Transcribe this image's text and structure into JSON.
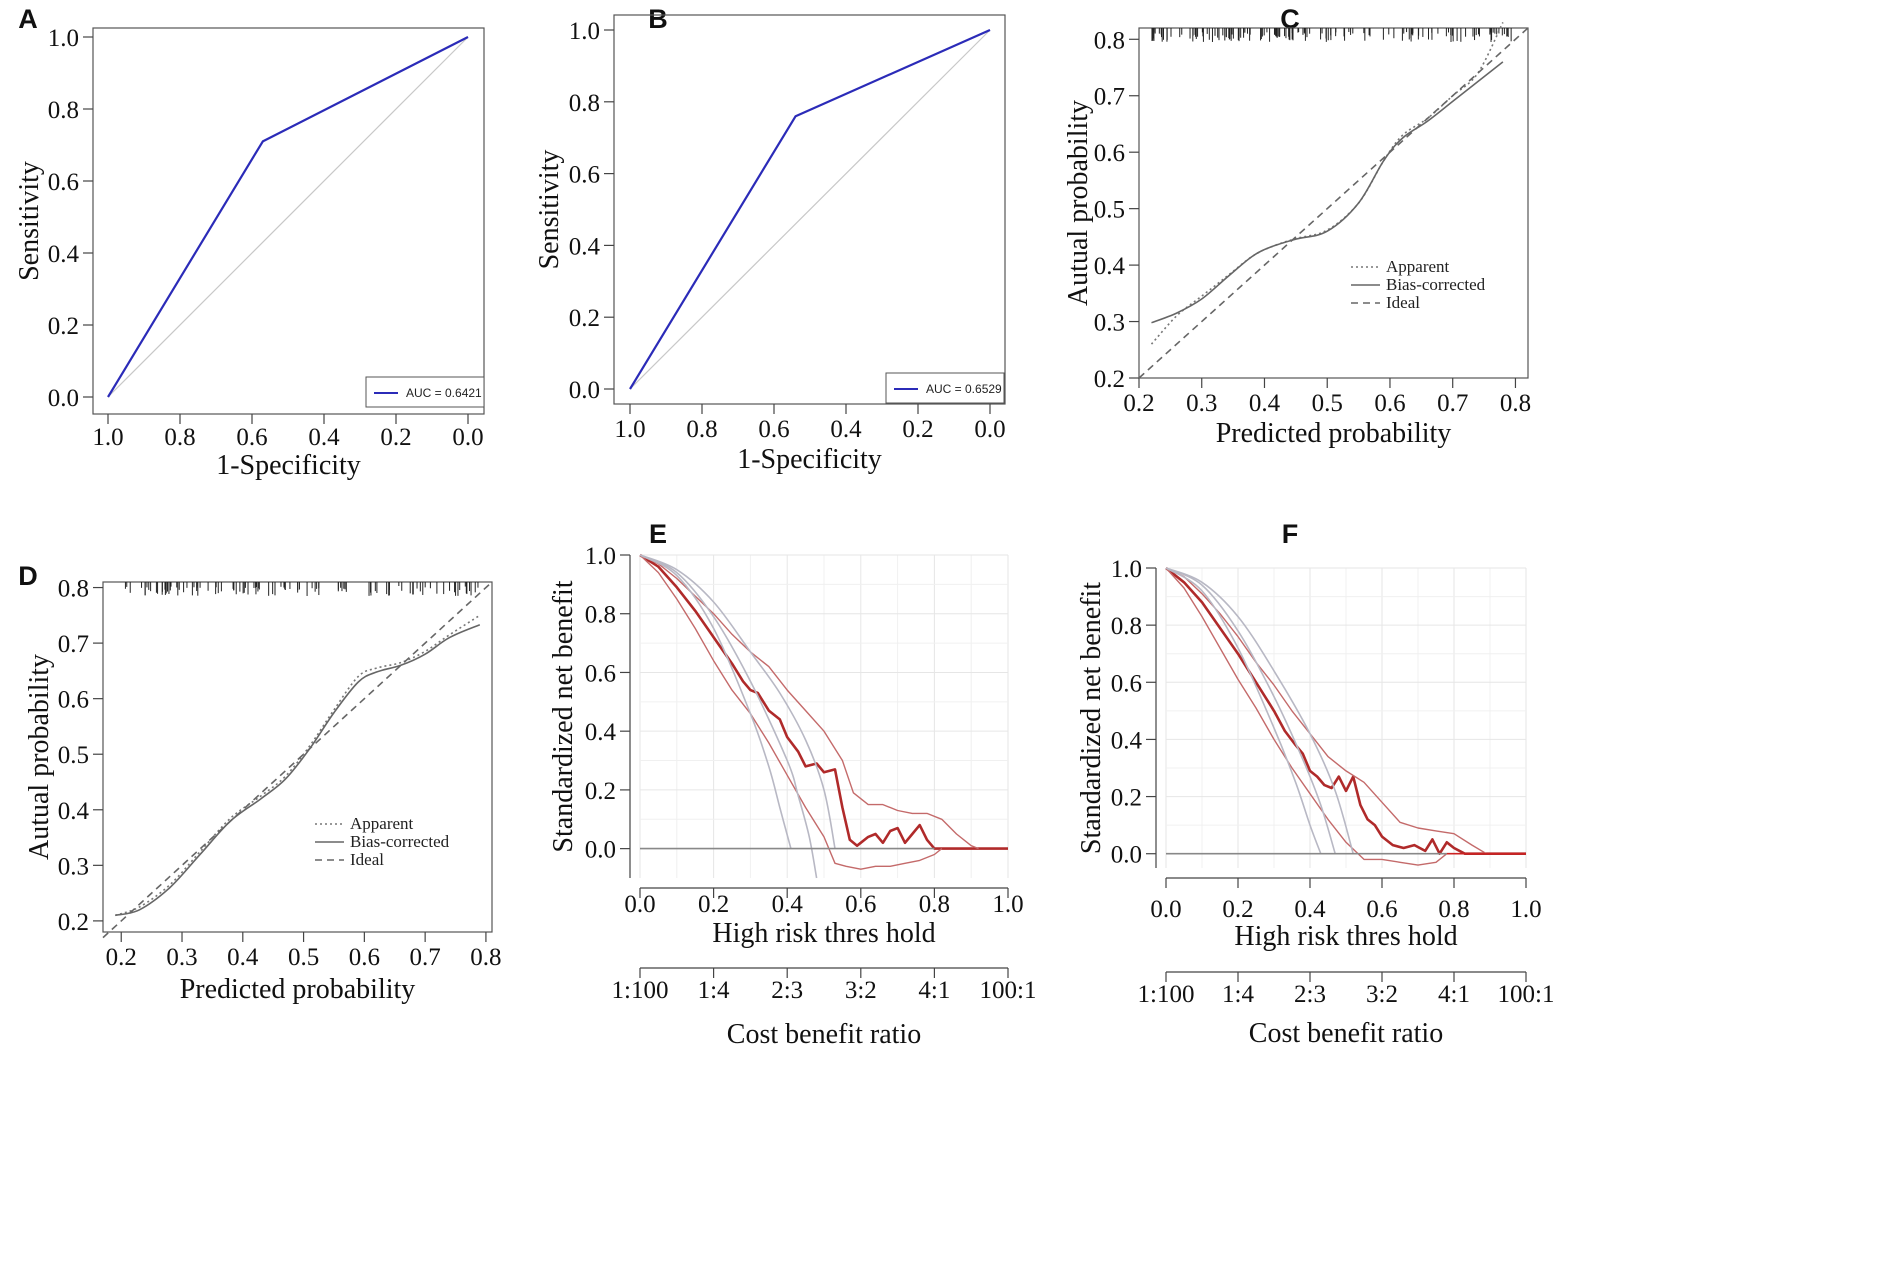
{
  "chart_data": [
    {
      "panel": "A",
      "type": "line",
      "xlabel": "1-Specificity",
      "ylabel": "Sensitivity",
      "xlim": [
        1.0,
        0.0
      ],
      "ylim": [
        0.0,
        1.0
      ],
      "xticks": [
        "1.0",
        "0.8",
        "0.6",
        "0.4",
        "0.2",
        "0.0"
      ],
      "yticks": [
        "0.0",
        "0.2",
        "0.4",
        "0.6",
        "0.8",
        "1.0"
      ],
      "series": [
        {
          "name": "AUC = 0.6421",
          "color": "#2b2bb8",
          "x": [
            1.0,
            0.57,
            0.0
          ],
          "y": [
            0.0,
            0.71,
            1.0
          ]
        }
      ],
      "reference_diagonal": true,
      "legend_position": "bottom-right"
    },
    {
      "panel": "B",
      "type": "line",
      "xlabel": "1-Specificity",
      "ylabel": "Sensitivity",
      "xlim": [
        1.0,
        0.0
      ],
      "ylim": [
        0.0,
        1.0
      ],
      "xticks": [
        "1.0",
        "0.8",
        "0.6",
        "0.4",
        "0.2",
        "0.0"
      ],
      "yticks": [
        "0.0",
        "0.2",
        "0.4",
        "0.6",
        "0.8",
        "1.0"
      ],
      "series": [
        {
          "name": "AUC = 0.6529",
          "color": "#2b2bb8",
          "x": [
            1.0,
            0.54,
            0.0
          ],
          "y": [
            0.0,
            0.76,
            1.0
          ]
        }
      ],
      "reference_diagonal": true,
      "legend_position": "bottom-right"
    },
    {
      "panel": "C",
      "type": "line",
      "xlabel": "Predicted probability",
      "ylabel": "Autual probability",
      "xlim": [
        0.2,
        0.82
      ],
      "ylim": [
        0.2,
        0.82
      ],
      "xticks": [
        "0.2",
        "0.3",
        "0.4",
        "0.5",
        "0.6",
        "0.7",
        "0.8"
      ],
      "yticks": [
        "0.2",
        "0.3",
        "0.4",
        "0.5",
        "0.6",
        "0.7",
        "0.8"
      ],
      "series": [
        {
          "name": "Apparent",
          "dash": "dotted",
          "color": "#777777",
          "x": [
            0.22,
            0.26,
            0.3,
            0.34,
            0.38,
            0.41,
            0.45,
            0.5,
            0.55,
            0.59,
            0.62,
            0.66,
            0.7,
            0.74,
            0.78
          ],
          "y": [
            0.26,
            0.31,
            0.345,
            0.38,
            0.415,
            0.432,
            0.447,
            0.462,
            0.51,
            0.585,
            0.63,
            0.66,
            0.7,
            0.74,
            0.83
          ]
        },
        {
          "name": "Bias-corrected",
          "dash": "solid",
          "color": "#666666",
          "x": [
            0.22,
            0.26,
            0.3,
            0.34,
            0.38,
            0.41,
            0.45,
            0.5,
            0.55,
            0.59,
            0.62,
            0.66,
            0.7,
            0.74,
            0.78
          ],
          "y": [
            0.298,
            0.315,
            0.34,
            0.378,
            0.415,
            0.432,
            0.446,
            0.46,
            0.51,
            0.585,
            0.625,
            0.655,
            0.69,
            0.725,
            0.76
          ]
        },
        {
          "name": "Ideal",
          "dash": "dashed",
          "color": "#666666",
          "x": [
            0.2,
            0.82
          ],
          "y": [
            0.2,
            0.82
          ]
        }
      ],
      "rug": "top",
      "legend_position": "center-right"
    },
    {
      "panel": "D",
      "type": "line",
      "xlabel": "Predicted probability",
      "ylabel": "Autual probability",
      "xlim": [
        0.17,
        0.81
      ],
      "ylim": [
        0.18,
        0.81
      ],
      "xticks": [
        "0.2",
        "0.3",
        "0.4",
        "0.5",
        "0.6",
        "0.7",
        "0.8"
      ],
      "yticks": [
        "0.2",
        "0.3",
        "0.4",
        "0.5",
        "0.6",
        "0.7",
        "0.8"
      ],
      "series": [
        {
          "name": "Apparent",
          "dash": "dotted",
          "color": "#777777",
          "x": [
            0.19,
            0.23,
            0.28,
            0.33,
            0.38,
            0.43,
            0.47,
            0.51,
            0.55,
            0.59,
            0.62,
            0.66,
            0.7,
            0.74,
            0.79
          ],
          "y": [
            0.21,
            0.225,
            0.265,
            0.325,
            0.385,
            0.425,
            0.46,
            0.515,
            0.58,
            0.64,
            0.655,
            0.665,
            0.685,
            0.715,
            0.75
          ]
        },
        {
          "name": "Bias-corrected",
          "dash": "solid",
          "color": "#666666",
          "x": [
            0.19,
            0.23,
            0.28,
            0.33,
            0.38,
            0.43,
            0.47,
            0.51,
            0.55,
            0.59,
            0.62,
            0.66,
            0.7,
            0.74,
            0.79
          ],
          "y": [
            0.21,
            0.22,
            0.26,
            0.32,
            0.38,
            0.42,
            0.455,
            0.51,
            0.575,
            0.63,
            0.648,
            0.66,
            0.68,
            0.71,
            0.733
          ]
        },
        {
          "name": "Ideal",
          "dash": "dashed",
          "color": "#666666",
          "x": [
            0.17,
            0.81
          ],
          "y": [
            0.17,
            0.81
          ]
        }
      ],
      "rug": "top",
      "legend_position": "bottom-right"
    },
    {
      "panel": "E",
      "type": "line",
      "xlabel": "High risk thres hold",
      "ylabel": "Standardized net benefit",
      "xlim": [
        0.0,
        1.0
      ],
      "ylim": [
        -0.1,
        1.0
      ],
      "xticks": [
        "0.0",
        "0.2",
        "0.4",
        "0.6",
        "0.8",
        "1.0"
      ],
      "yticks": [
        "0.0",
        "0.2",
        "0.4",
        "0.6",
        "0.8",
        "1.0"
      ],
      "cost_benefit_axis": {
        "label": "Cost benefit ratio",
        "ticks": [
          "1:100",
          "1:4",
          "2:3",
          "3:2",
          "4:1",
          "100:1"
        ],
        "tick_positions": [
          0.0,
          0.2,
          0.4,
          0.6,
          0.8,
          1.0
        ]
      },
      "grid": true,
      "series": [
        {
          "role": "model",
          "color": "#b02a2a",
          "x": [
            0.0,
            0.05,
            0.1,
            0.15,
            0.2,
            0.25,
            0.28,
            0.3,
            0.32,
            0.35,
            0.38,
            0.4,
            0.43,
            0.45,
            0.48,
            0.5,
            0.53,
            0.55,
            0.57,
            0.59,
            0.62,
            0.64,
            0.66,
            0.68,
            0.7,
            0.72,
            0.74,
            0.76,
            0.78,
            0.8,
            0.83,
            0.86,
            0.9,
            0.95,
            1.0
          ],
          "y": [
            1.0,
            0.96,
            0.89,
            0.81,
            0.72,
            0.63,
            0.57,
            0.54,
            0.53,
            0.47,
            0.44,
            0.38,
            0.33,
            0.28,
            0.29,
            0.26,
            0.27,
            0.14,
            0.03,
            0.01,
            0.04,
            0.05,
            0.02,
            0.06,
            0.07,
            0.02,
            0.05,
            0.08,
            0.03,
            0.0,
            0.0,
            0.0,
            0.0,
            0.0,
            0.0
          ]
        },
        {
          "role": "ci-upper",
          "color": "#c46a6a",
          "x": [
            0.0,
            0.05,
            0.1,
            0.15,
            0.2,
            0.25,
            0.3,
            0.35,
            0.4,
            0.45,
            0.5,
            0.55,
            0.58,
            0.62,
            0.66,
            0.7,
            0.74,
            0.78,
            0.82,
            0.86,
            0.9,
            0.92
          ],
          "y": [
            1.0,
            0.97,
            0.92,
            0.86,
            0.8,
            0.73,
            0.67,
            0.62,
            0.54,
            0.47,
            0.4,
            0.3,
            0.19,
            0.15,
            0.15,
            0.13,
            0.12,
            0.12,
            0.1,
            0.05,
            0.01,
            0.0
          ]
        },
        {
          "role": "ci-lower",
          "color": "#c46a6a",
          "x": [
            0.0,
            0.05,
            0.1,
            0.15,
            0.2,
            0.25,
            0.3,
            0.35,
            0.4,
            0.45,
            0.5,
            0.53,
            0.56,
            0.6,
            0.64,
            0.68,
            0.72,
            0.76,
            0.8,
            0.82
          ],
          "y": [
            1.0,
            0.94,
            0.85,
            0.75,
            0.64,
            0.54,
            0.46,
            0.36,
            0.25,
            0.14,
            0.04,
            -0.05,
            -0.06,
            -0.07,
            -0.06,
            -0.06,
            -0.05,
            -0.04,
            -0.02,
            0.0
          ]
        },
        {
          "role": "reference-gray",
          "color": "#b8b8c4",
          "x": [
            0.0,
            0.1,
            0.2,
            0.3,
            0.35,
            0.38,
            0.41
          ],
          "y": [
            1.0,
            0.93,
            0.75,
            0.46,
            0.28,
            0.14,
            0.0
          ]
        },
        {
          "role": "reference-gray",
          "color": "#b8b8c4",
          "x": [
            0.0,
            0.1,
            0.2,
            0.3,
            0.4,
            0.43,
            0.46,
            0.48
          ],
          "y": [
            1.0,
            0.94,
            0.79,
            0.57,
            0.3,
            0.18,
            0.04,
            -0.1
          ]
        },
        {
          "role": "reference-gray",
          "color": "#b8b8c4",
          "x": [
            0.0,
            0.1,
            0.2,
            0.3,
            0.38,
            0.45,
            0.5,
            0.53
          ],
          "y": [
            1.0,
            0.95,
            0.84,
            0.67,
            0.53,
            0.37,
            0.2,
            0.0
          ]
        },
        {
          "role": "zero-line",
          "color": "#888888",
          "x": [
            0.0,
            0.8
          ],
          "y": [
            0.0,
            0.0
          ]
        }
      ]
    },
    {
      "panel": "F",
      "type": "line",
      "xlabel": "High risk thres hold",
      "ylabel": "Standardized net benefit",
      "xlim": [
        0.0,
        1.0
      ],
      "ylim": [
        -0.05,
        1.0
      ],
      "xticks": [
        "0.0",
        "0.2",
        "0.4",
        "0.6",
        "0.8",
        "1.0"
      ],
      "yticks": [
        "0.0",
        "0.2",
        "0.4",
        "0.6",
        "0.8",
        "1.0"
      ],
      "cost_benefit_axis": {
        "label": "Cost benefit ratio",
        "ticks": [
          "1:100",
          "1:4",
          "2:3",
          "3:2",
          "4:1",
          "100:1"
        ],
        "tick_positions": [
          0.0,
          0.2,
          0.4,
          0.6,
          0.8,
          1.0
        ]
      },
      "grid": true,
      "series": [
        {
          "role": "model",
          "color": "#b02a2a",
          "x": [
            0.0,
            0.05,
            0.1,
            0.15,
            0.2,
            0.25,
            0.28,
            0.3,
            0.33,
            0.36,
            0.38,
            0.4,
            0.42,
            0.44,
            0.46,
            0.48,
            0.5,
            0.52,
            0.54,
            0.56,
            0.58,
            0.6,
            0.63,
            0.66,
            0.69,
            0.72,
            0.74,
            0.76,
            0.78,
            0.8,
            0.83,
            0.86,
            0.9,
            0.95,
            1.0
          ],
          "y": [
            1.0,
            0.95,
            0.88,
            0.79,
            0.7,
            0.6,
            0.54,
            0.5,
            0.43,
            0.38,
            0.35,
            0.29,
            0.27,
            0.24,
            0.23,
            0.27,
            0.22,
            0.27,
            0.17,
            0.12,
            0.1,
            0.06,
            0.03,
            0.02,
            0.03,
            0.01,
            0.05,
            0.0,
            0.04,
            0.02,
            0.0,
            0.0,
            0.0,
            0.0,
            0.0
          ]
        },
        {
          "role": "ci-upper",
          "color": "#c46a6a",
          "x": [
            0.0,
            0.05,
            0.1,
            0.15,
            0.2,
            0.25,
            0.3,
            0.35,
            0.4,
            0.45,
            0.5,
            0.55,
            0.6,
            0.65,
            0.7,
            0.75,
            0.8,
            0.85,
            0.89
          ],
          "y": [
            1.0,
            0.97,
            0.91,
            0.84,
            0.76,
            0.67,
            0.59,
            0.5,
            0.42,
            0.34,
            0.29,
            0.25,
            0.18,
            0.11,
            0.09,
            0.08,
            0.07,
            0.03,
            0.0
          ]
        },
        {
          "role": "ci-lower",
          "color": "#c46a6a",
          "x": [
            0.0,
            0.05,
            0.1,
            0.15,
            0.2,
            0.25,
            0.3,
            0.35,
            0.4,
            0.45,
            0.5,
            0.55,
            0.6,
            0.65,
            0.7,
            0.75,
            0.78
          ],
          "y": [
            1.0,
            0.93,
            0.83,
            0.72,
            0.61,
            0.51,
            0.4,
            0.3,
            0.21,
            0.12,
            0.04,
            -0.02,
            -0.02,
            -0.03,
            -0.04,
            -0.03,
            0.0
          ]
        },
        {
          "role": "reference-gray",
          "color": "#b8b8c4",
          "x": [
            0.0,
            0.1,
            0.2,
            0.3,
            0.36,
            0.4,
            0.43
          ],
          "y": [
            1.0,
            0.92,
            0.72,
            0.44,
            0.25,
            0.1,
            0.0
          ]
        },
        {
          "role": "reference-gray",
          "color": "#b8b8c4",
          "x": [
            0.0,
            0.1,
            0.2,
            0.3,
            0.38,
            0.43,
            0.47
          ],
          "y": [
            1.0,
            0.94,
            0.78,
            0.55,
            0.33,
            0.17,
            0.0
          ]
        },
        {
          "role": "reference-gray",
          "color": "#b8b8c4",
          "x": [
            0.0,
            0.1,
            0.2,
            0.3,
            0.4,
            0.47,
            0.52
          ],
          "y": [
            1.0,
            0.95,
            0.83,
            0.64,
            0.42,
            0.22,
            0.0
          ]
        },
        {
          "role": "zero-line",
          "color": "#888888",
          "x": [
            0.0,
            0.78
          ],
          "y": [
            0.0,
            0.0
          ]
        },
        {
          "role": "zero-line-red",
          "color": "#cc2222",
          "x": [
            0.78,
            1.0
          ],
          "y": [
            0.0,
            0.0
          ]
        }
      ]
    }
  ]
}
